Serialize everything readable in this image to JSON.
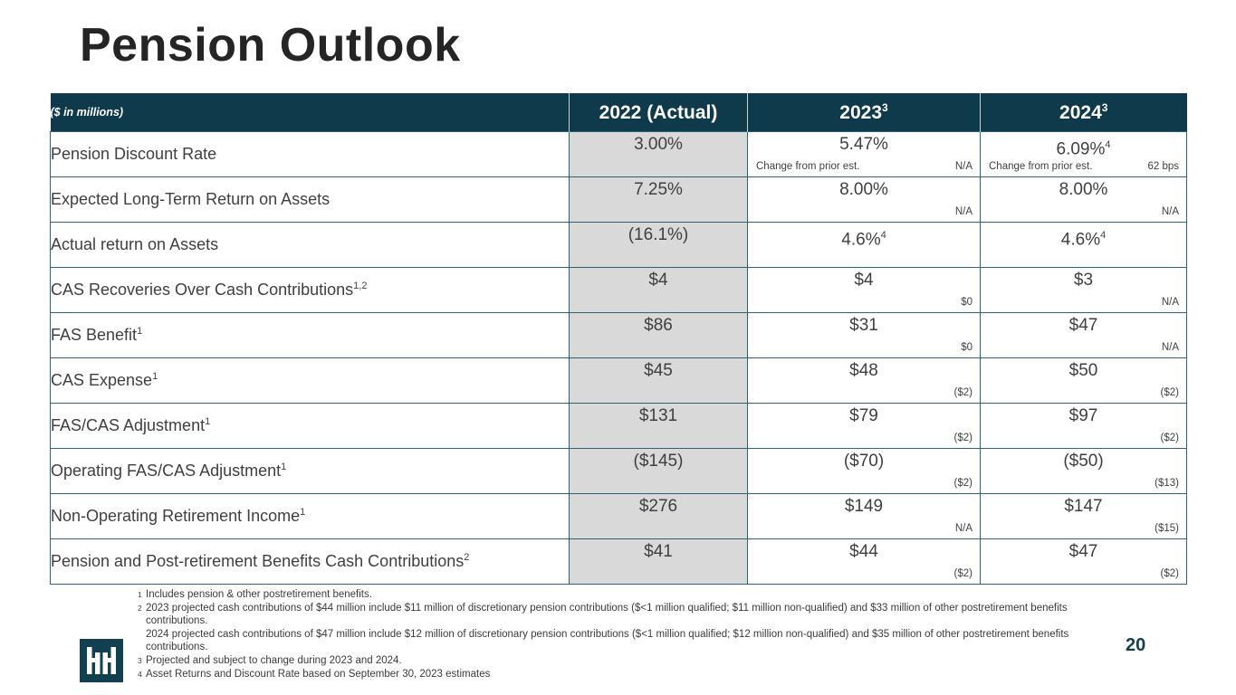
{
  "slide": {
    "title": "Pension Outlook",
    "page_number": "20"
  },
  "table": {
    "unit_label": "($ in millions)",
    "columns": [
      {
        "label": "2022 (Actual)",
        "sup": ""
      },
      {
        "label": "2023",
        "sup": "3"
      },
      {
        "label": "2024",
        "sup": "3"
      }
    ],
    "rows": [
      {
        "label": "Pension Discount Rate",
        "label_sup": "",
        "y2022": "3.00%",
        "y2023": {
          "value": "5.47%",
          "sup": "",
          "sub_label": "Change from prior est.",
          "sub": "N/A"
        },
        "y2024": {
          "value": "6.09%",
          "sup": "4",
          "sub_label": "Change from prior est.",
          "sub": "62 bps"
        }
      },
      {
        "label": "Expected Long-Term Return on Assets",
        "label_sup": "",
        "y2022": "7.25%",
        "y2023": {
          "value": "8.00%",
          "sup": "",
          "sub_label": "",
          "sub": "N/A"
        },
        "y2024": {
          "value": "8.00%",
          "sup": "",
          "sub_label": "",
          "sub": "N/A"
        }
      },
      {
        "label": "Actual return on Assets",
        "label_sup": "",
        "y2022": "(16.1%)",
        "y2023": {
          "value": "4.6%",
          "sup": "4",
          "sub_label": "",
          "sub": ""
        },
        "y2024": {
          "value": "4.6%",
          "sup": "4",
          "sub_label": "",
          "sub": ""
        }
      },
      {
        "label": "CAS Recoveries Over Cash Contributions",
        "label_sup": "1,2",
        "y2022": "$4",
        "y2023": {
          "value": "$4",
          "sup": "",
          "sub_label": "",
          "sub": "$0"
        },
        "y2024": {
          "value": "$3",
          "sup": "",
          "sub_label": "",
          "sub": "N/A"
        }
      },
      {
        "label": "FAS Benefit",
        "label_sup": "1",
        "y2022": "$86",
        "y2023": {
          "value": "$31",
          "sup": "",
          "sub_label": "",
          "sub": "$0"
        },
        "y2024": {
          "value": "$47",
          "sup": "",
          "sub_label": "",
          "sub": "N/A"
        }
      },
      {
        "label": "CAS Expense",
        "label_sup": "1",
        "y2022": "$45",
        "y2023": {
          "value": "$48",
          "sup": "",
          "sub_label": "",
          "sub": "($2)"
        },
        "y2024": {
          "value": "$50",
          "sup": "",
          "sub_label": "",
          "sub": "($2)"
        }
      },
      {
        "label": "FAS/CAS Adjustment",
        "label_sup": "1",
        "y2022": "$131",
        "y2023": {
          "value": "$79",
          "sup": "",
          "sub_label": "",
          "sub": "($2)"
        },
        "y2024": {
          "value": "$97",
          "sup": "",
          "sub_label": "",
          "sub": "($2)"
        }
      },
      {
        "label": "Operating FAS/CAS Adjustment",
        "label_sup": "1",
        "y2022": "($145)",
        "y2023": {
          "value": "($70)",
          "sup": "",
          "sub_label": "",
          "sub": "($2)"
        },
        "y2024": {
          "value": "($50)",
          "sup": "",
          "sub_label": "",
          "sub": "($13)"
        }
      },
      {
        "label": "Non-Operating Retirement Income",
        "label_sup": "1",
        "y2022": "$276",
        "y2023": {
          "value": "$149",
          "sup": "",
          "sub_label": "",
          "sub": "N/A"
        },
        "y2024": {
          "value": "$147",
          "sup": "",
          "sub_label": "",
          "sub": "($15)"
        }
      },
      {
        "label": "Pension and Post-retirement Benefits Cash Contributions",
        "label_sup": "2",
        "y2022": "$41",
        "y2023": {
          "value": "$44",
          "sup": "",
          "sub_label": "",
          "sub": "($2)"
        },
        "y2024": {
          "value": "$47",
          "sup": "",
          "sub_label": "",
          "sub": "($2)"
        }
      }
    ]
  },
  "footnotes": [
    {
      "marker": "1",
      "lines": [
        "Includes pension & other postretirement benefits."
      ]
    },
    {
      "marker": "2",
      "lines": [
        "2023 projected cash contributions of $44 million include $11 million of discretionary pension contributions ($<1 million qualified; $11 million non-qualified) and $33 million of other postretirement benefits contributions.",
        "2024 projected cash contributions of $47 million include $12 million of discretionary pension contributions ($<1 million qualified; $12 million non-qualified) and $35 million of other postretirement benefits contributions."
      ]
    },
    {
      "marker": "3",
      "lines": [
        "Projected and subject to change during 2023 and 2024."
      ]
    },
    {
      "marker": "4",
      "lines": [
        "Asset Returns and Discount Rate based on September 30, 2023 estimates"
      ]
    }
  ],
  "colors": {
    "header_bg": "#0e3a4b",
    "table_border": "#2d6374",
    "col_2022_bg": "#d9d9d9",
    "body_text": "#3f3f3f",
    "accent_teal": "#133f4e"
  }
}
